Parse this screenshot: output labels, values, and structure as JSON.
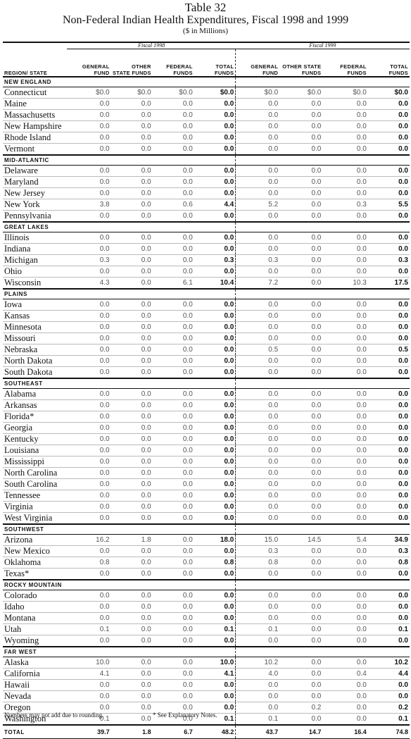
{
  "title": "Table 32",
  "subtitle": "Non-Federal Indian Health Expenditures, Fiscal 1998 and 1999",
  "units": "($ in Millions)",
  "fiscal_groups": [
    "Fiscal 1998",
    "Fiscal 1999"
  ],
  "headers": [
    "REGION/ STATE",
    "GENERAL FUND",
    "OTHER STATE FUNDS",
    "FEDERAL FUNDS",
    "TOTAL FUNDS",
    "GENERAL FUND",
    "OTHER STATE FUNDS",
    "FEDERAL FUNDS",
    "TOTAL FUNDS"
  ],
  "regions": [
    {
      "name": "NEW ENGLAND",
      "rows": [
        [
          "Connecticut",
          "$0.0",
          "$0.0",
          "$0.0",
          "$0.0",
          "$0.0",
          "$0.0",
          "$0.0",
          "$0.0"
        ],
        [
          "Maine",
          "0.0",
          "0.0",
          "0.0",
          "0.0",
          "0.0",
          "0.0",
          "0.0",
          "0.0"
        ],
        [
          "Massachusetts",
          "0.0",
          "0.0",
          "0.0",
          "0.0",
          "0.0",
          "0.0",
          "0.0",
          "0.0"
        ],
        [
          "New Hampshire",
          "0.0",
          "0.0",
          "0.0",
          "0.0",
          "0.0",
          "0.0",
          "0.0",
          "0.0"
        ],
        [
          "Rhode Island",
          "0.0",
          "0.0",
          "0.0",
          "0.0",
          "0.0",
          "0.0",
          "0.0",
          "0.0"
        ],
        [
          "Vermont",
          "0.0",
          "0.0",
          "0.0",
          "0.0",
          "0.0",
          "0.0",
          "0.0",
          "0.0"
        ]
      ]
    },
    {
      "name": "MID-ATLANTIC",
      "rows": [
        [
          "Delaware",
          "0.0",
          "0.0",
          "0.0",
          "0.0",
          "0.0",
          "0.0",
          "0.0",
          "0.0"
        ],
        [
          "Maryland",
          "0.0",
          "0.0",
          "0.0",
          "0.0",
          "0.0",
          "0.0",
          "0.0",
          "0.0"
        ],
        [
          "New Jersey",
          "0.0",
          "0.0",
          "0.0",
          "0.0",
          "0.0",
          "0.0",
          "0.0",
          "0.0"
        ],
        [
          "New York",
          "3.8",
          "0.0",
          "0.6",
          "4.4",
          "5.2",
          "0.0",
          "0.3",
          "5.5"
        ],
        [
          "Pennsylvania",
          "0.0",
          "0.0",
          "0.0",
          "0.0",
          "0.0",
          "0.0",
          "0.0",
          "0.0"
        ]
      ]
    },
    {
      "name": "GREAT LAKES",
      "rows": [
        [
          "Illinois",
          "0.0",
          "0.0",
          "0.0",
          "0.0",
          "0.0",
          "0.0",
          "0.0",
          "0.0"
        ],
        [
          "Indiana",
          "0.0",
          "0.0",
          "0.0",
          "0.0",
          "0.0",
          "0.0",
          "0.0",
          "0.0"
        ],
        [
          "Michigan",
          "0.3",
          "0.0",
          "0.0",
          "0.3",
          "0.3",
          "0.0",
          "0.0",
          "0.3"
        ],
        [
          "Ohio",
          "0.0",
          "0.0",
          "0.0",
          "0.0",
          "0.0",
          "0.0",
          "0.0",
          "0.0"
        ],
        [
          "Wisconsin",
          "4.3",
          "0.0",
          "6.1",
          "10.4",
          "7.2",
          "0.0",
          "10.3",
          "17.5"
        ]
      ]
    },
    {
      "name": "PLAINS",
      "rows": [
        [
          "Iowa",
          "0.0",
          "0.0",
          "0.0",
          "0.0",
          "0.0",
          "0.0",
          "0.0",
          "0.0"
        ],
        [
          "Kansas",
          "0.0",
          "0.0",
          "0.0",
          "0.0",
          "0.0",
          "0.0",
          "0.0",
          "0.0"
        ],
        [
          "Minnesota",
          "0.0",
          "0.0",
          "0.0",
          "0.0",
          "0.0",
          "0.0",
          "0.0",
          "0.0"
        ],
        [
          "Missouri",
          "0.0",
          "0.0",
          "0.0",
          "0.0",
          "0.0",
          "0.0",
          "0.0",
          "0.0"
        ],
        [
          "Nebraska",
          "0.0",
          "0.0",
          "0.0",
          "0.0",
          "0.5",
          "0.0",
          "0.0",
          "0.5"
        ],
        [
          "North Dakota",
          "0.0",
          "0.0",
          "0.0",
          "0.0",
          "0.0",
          "0.0",
          "0.0",
          "0.0"
        ],
        [
          "South Dakota",
          "0.0",
          "0.0",
          "0.0",
          "0.0",
          "0.0",
          "0.0",
          "0.0",
          "0.0"
        ]
      ]
    },
    {
      "name": "SOUTHEAST",
      "rows": [
        [
          "Alabama",
          "0.0",
          "0.0",
          "0.0",
          "0.0",
          "0.0",
          "0.0",
          "0.0",
          "0.0"
        ],
        [
          "Arkansas",
          "0.0",
          "0.0",
          "0.0",
          "0.0",
          "0.0",
          "0.0",
          "0.0",
          "0.0"
        ],
        [
          "Florida*",
          "0.0",
          "0.0",
          "0.0",
          "0.0",
          "0.0",
          "0.0",
          "0.0",
          "0.0"
        ],
        [
          "Georgia",
          "0.0",
          "0.0",
          "0.0",
          "0.0",
          "0.0",
          "0.0",
          "0.0",
          "0.0"
        ],
        [
          "Kentucky",
          "0.0",
          "0.0",
          "0.0",
          "0.0",
          "0.0",
          "0.0",
          "0.0",
          "0.0"
        ],
        [
          "Louisiana",
          "0.0",
          "0.0",
          "0.0",
          "0.0",
          "0.0",
          "0.0",
          "0.0",
          "0.0"
        ],
        [
          "Mississippi",
          "0.0",
          "0.0",
          "0.0",
          "0.0",
          "0.0",
          "0.0",
          "0.0",
          "0.0"
        ],
        [
          "North Carolina",
          "0.0",
          "0.0",
          "0.0",
          "0.0",
          "0.0",
          "0.0",
          "0.0",
          "0.0"
        ],
        [
          "South Carolina",
          "0.0",
          "0.0",
          "0.0",
          "0.0",
          "0.0",
          "0.0",
          "0.0",
          "0.0"
        ],
        [
          "Tennessee",
          "0.0",
          "0.0",
          "0.0",
          "0.0",
          "0.0",
          "0.0",
          "0.0",
          "0.0"
        ],
        [
          "Virginia",
          "0.0",
          "0.0",
          "0.0",
          "0.0",
          "0.0",
          "0.0",
          "0.0",
          "0.0"
        ],
        [
          "West Virginia",
          "0.0",
          "0.0",
          "0.0",
          "0.0",
          "0.0",
          "0.0",
          "0.0",
          "0.0"
        ]
      ]
    },
    {
      "name": "SOUTHWEST",
      "rows": [
        [
          "Arizona",
          "16.2",
          "1.8",
          "0.0",
          "18.0",
          "15.0",
          "14.5",
          "5.4",
          "34.9"
        ],
        [
          "New Mexico",
          "0.0",
          "0.0",
          "0.0",
          "0.0",
          "0.3",
          "0.0",
          "0.0",
          "0.3"
        ],
        [
          "Oklahoma",
          "0.8",
          "0.0",
          "0.0",
          "0.8",
          "0.8",
          "0.0",
          "0.0",
          "0.8"
        ],
        [
          "Texas*",
          "0.0",
          "0.0",
          "0.0",
          "0.0",
          "0.0",
          "0.0",
          "0.0",
          "0.0"
        ]
      ]
    },
    {
      "name": "ROCKY MOUNTAIN",
      "rows": [
        [
          "Colorado",
          "0.0",
          "0.0",
          "0.0",
          "0.0",
          "0.0",
          "0.0",
          "0.0",
          "0.0"
        ],
        [
          "Idaho",
          "0.0",
          "0.0",
          "0.0",
          "0.0",
          "0.0",
          "0.0",
          "0.0",
          "0.0"
        ],
        [
          "Montana",
          "0.0",
          "0.0",
          "0.0",
          "0.0",
          "0.0",
          "0.0",
          "0.0",
          "0.0"
        ],
        [
          "Utah",
          "0.1",
          "0.0",
          "0.0",
          "0.1",
          "0.1",
          "0.0",
          "0.0",
          "0.1"
        ],
        [
          "Wyoming",
          "0.0",
          "0.0",
          "0.0",
          "0.0",
          "0.0",
          "0.0",
          "0.0",
          "0.0"
        ]
      ]
    },
    {
      "name": "FAR WEST",
      "rows": [
        [
          "Alaska",
          "10.0",
          "0.0",
          "0.0",
          "10.0",
          "10.2",
          "0.0",
          "0.0",
          "10.2"
        ],
        [
          "California",
          "4.1",
          "0.0",
          "0.0",
          "4.1",
          "4.0",
          "0.0",
          "0.4",
          "4.4"
        ],
        [
          "Hawaii",
          "0.0",
          "0.0",
          "0.0",
          "0.0",
          "0.0",
          "0.0",
          "0.0",
          "0.0"
        ],
        [
          "Nevada",
          "0.0",
          "0.0",
          "0.0",
          "0.0",
          "0.0",
          "0.0",
          "0.0",
          "0.0"
        ],
        [
          "Oregon",
          "0.0",
          "0.0",
          "0.0",
          "0.0",
          "0.0",
          "0.2",
          "0.0",
          "0.2"
        ],
        [
          "Washington",
          "0.1",
          "0.0",
          "0.0",
          "0.1",
          "0.1",
          "0.0",
          "0.0",
          "0.1"
        ]
      ]
    }
  ],
  "total": [
    "TOTAL",
    "39.7",
    "1.8",
    "6.7",
    "48.2",
    "43.7",
    "14.7",
    "16.4",
    "74.8"
  ],
  "notes": [
    "Numbers may not add due to rounding.",
    "* See Explanatory Notes."
  ]
}
